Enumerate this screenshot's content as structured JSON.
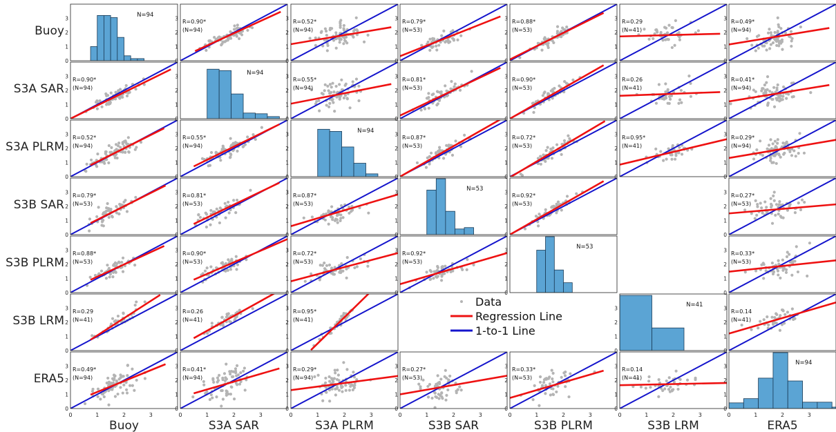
{
  "chart_data": {
    "type": "scatter",
    "variables": [
      "Buoy",
      "S3A SAR",
      "S3A PLRM",
      "S3B SAR",
      "S3B PLRM",
      "S3B LRM",
      "ERA5"
    ],
    "axis_limits": [
      0,
      4
    ],
    "ticks": [
      "0",
      "1",
      "2",
      "3"
    ],
    "legend": {
      "data": "Data",
      "regression": "Regression Line",
      "one_to_one": "1-to-1 Line",
      "placement": "center (row 6, columns 4-5)"
    },
    "colors": {
      "data": "#b4b4b4",
      "regression": "#ee1111",
      "one_to_one": "#1414cc",
      "histogram": "#5ba4d4"
    },
    "histograms": [
      {
        "variable": "Buoy",
        "n_label": "N=94",
        "bins": [
          [
            0.75,
            1.0,
            1
          ],
          [
            1.0,
            1.25,
            3.2
          ],
          [
            1.25,
            1.5,
            3.2
          ],
          [
            1.5,
            1.75,
            3.05
          ],
          [
            1.75,
            2.0,
            1.65
          ],
          [
            2.0,
            2.25,
            0.35
          ],
          [
            2.25,
            2.5,
            0.15
          ],
          [
            2.5,
            2.75,
            0.15
          ]
        ]
      },
      {
        "variable": "S3A SAR",
        "n_label": "N=94",
        "bins": [
          [
            1.0,
            1.45,
            3.5
          ],
          [
            1.45,
            1.9,
            3.4
          ],
          [
            1.9,
            2.35,
            1.75
          ],
          [
            2.35,
            2.8,
            0.4
          ],
          [
            2.8,
            3.25,
            0.35
          ],
          [
            3.25,
            3.7,
            0.15
          ]
        ]
      },
      {
        "variable": "S3A PLRM",
        "n_label": "N=94",
        "bins": [
          [
            1.0,
            1.45,
            3.35
          ],
          [
            1.45,
            1.9,
            3.2
          ],
          [
            1.9,
            2.35,
            2.1
          ],
          [
            2.35,
            2.8,
            0.95
          ],
          [
            2.8,
            3.25,
            0.2
          ]
        ]
      },
      {
        "variable": "S3B SAR",
        "n_label": "N=53",
        "bins": [
          [
            1.0,
            1.35,
            3.15
          ],
          [
            1.35,
            1.7,
            3.95
          ],
          [
            1.7,
            2.05,
            1.65
          ],
          [
            2.05,
            2.4,
            0.4
          ],
          [
            2.4,
            2.75,
            0.5
          ]
        ]
      },
      {
        "variable": "S3B PLRM",
        "n_label": "N=53",
        "bins": [
          [
            1.0,
            1.33,
            3.0
          ],
          [
            1.33,
            1.66,
            3.95
          ],
          [
            1.66,
            2.0,
            1.6
          ],
          [
            2.0,
            2.33,
            0.7
          ]
        ]
      },
      {
        "variable": "S3B LRM",
        "n_label": "N=41",
        "bins": [
          [
            0.0,
            1.2,
            3.9
          ],
          [
            1.2,
            2.4,
            1.6
          ]
        ]
      },
      {
        "variable": "ERA5",
        "n_label": "N=94",
        "bins": [
          [
            0.0,
            0.55,
            0.4
          ],
          [
            0.55,
            1.1,
            0.7
          ],
          [
            1.1,
            1.65,
            2.15
          ],
          [
            1.65,
            2.2,
            3.95
          ],
          [
            2.2,
            2.75,
            1.95
          ],
          [
            2.75,
            3.3,
            0.45
          ],
          [
            3.3,
            3.85,
            0.45
          ],
          [
            3.85,
            4.4,
            0.1
          ]
        ]
      }
    ],
    "panels": [
      {
        "row": 0,
        "col": 1,
        "r_label": "R=0.90*",
        "n_label": "(N=94)",
        "slope": 0.87,
        "intercept": 0.2,
        "x_range": [
          0.55,
          3.75
        ],
        "n": 94,
        "cx": 1.75,
        "cy": 1.75,
        "spread": 0.22
      },
      {
        "row": 0,
        "col": 2,
        "r_label": "R=0.52*",
        "n_label": "(N=94)",
        "slope": 0.32,
        "intercept": 1.17,
        "x_range": [
          0,
          3.75
        ],
        "n": 94,
        "cx": 1.7,
        "cy": 1.75,
        "spread": 0.45
      },
      {
        "row": 0,
        "col": 3,
        "r_label": "R=0.79*",
        "n_label": "(N=53)",
        "slope": 0.75,
        "intercept": 0.32,
        "x_range": [
          0,
          3.75
        ],
        "n": 53,
        "cx": 1.6,
        "cy": 1.55,
        "spread": 0.3
      },
      {
        "row": 0,
        "col": 4,
        "r_label": "R=0.88*",
        "n_label": "(N=53)",
        "slope": 0.94,
        "intercept": 0.09,
        "x_range": [
          0,
          3.5
        ],
        "n": 53,
        "cx": 1.6,
        "cy": 1.55,
        "spread": 0.22
      },
      {
        "row": 0,
        "col": 5,
        "r_label": "R=0.29",
        "n_label": "(N=41)",
        "slope": 0.05,
        "intercept": 1.72,
        "x_range": [
          0,
          3.75
        ],
        "n": 41,
        "cx": 1.7,
        "cy": 1.8,
        "spread": 0.4
      },
      {
        "row": 0,
        "col": 6,
        "r_label": "R=0.49*",
        "n_label": "(N=94)",
        "slope": 0.31,
        "intercept": 1.15,
        "x_range": [
          0,
          3.75
        ],
        "n": 94,
        "cx": 1.7,
        "cy": 1.75,
        "spread": 0.45
      },
      {
        "row": 1,
        "col": 0,
        "r_label": "R=0.90*",
        "n_label": "(N=94)",
        "slope": 0.93,
        "intercept": 0.0,
        "x_range": [
          0,
          3.75
        ],
        "n": 94,
        "cx": 1.7,
        "cy": 1.75,
        "spread": 0.22
      },
      {
        "row": 1,
        "col": 2,
        "r_label": "R=0.55*",
        "n_label": "(N=94)",
        "slope": 0.37,
        "intercept": 1.06,
        "x_range": [
          0,
          3.75
        ],
        "n": 94,
        "cx": 1.7,
        "cy": 1.75,
        "spread": 0.45
      },
      {
        "row": 1,
        "col": 3,
        "r_label": "R=0.81*",
        "n_label": "(N=53)",
        "slope": 0.9,
        "intercept": 0.22,
        "x_range": [
          0,
          3.75
        ],
        "n": 53,
        "cx": 1.6,
        "cy": 1.65,
        "spread": 0.3
      },
      {
        "row": 1,
        "col": 4,
        "r_label": "R=0.90*",
        "n_label": "(N=53)",
        "slope": 1.08,
        "intercept": 0.0,
        "x_range": [
          0,
          3.5
        ],
        "n": 53,
        "cx": 1.6,
        "cy": 1.6,
        "spread": 0.22
      },
      {
        "row": 1,
        "col": 5,
        "r_label": "R=0.26",
        "n_label": "(N=41)",
        "slope": 0.07,
        "intercept": 1.62,
        "x_range": [
          0,
          3.75
        ],
        "n": 41,
        "cx": 1.7,
        "cy": 1.8,
        "spread": 0.4
      },
      {
        "row": 1,
        "col": 6,
        "r_label": "R=0.41*",
        "n_label": "(N=94)",
        "slope": 0.31,
        "intercept": 1.22,
        "x_range": [
          0,
          3.75
        ],
        "n": 94,
        "cx": 1.7,
        "cy": 1.75,
        "spread": 0.45
      },
      {
        "row": 2,
        "col": 0,
        "r_label": "R=0.52*",
        "n_label": "(N=94)",
        "slope": 0.95,
        "intercept": 0.1,
        "x_range": [
          0.75,
          3.5
        ],
        "n": 94,
        "cx": 1.7,
        "cy": 1.75,
        "spread": 0.3
      },
      {
        "row": 2,
        "col": 1,
        "r_label": "R=0.55*",
        "n_label": "(N=94)",
        "slope": 0.93,
        "intercept": 0.26,
        "x_range": [
          0.5,
          3.7
        ],
        "n": 94,
        "cx": 1.7,
        "cy": 1.75,
        "spread": 0.3
      },
      {
        "row": 2,
        "col": 3,
        "r_label": "R=0.87*",
        "n_label": "(N=53)",
        "slope": 1.08,
        "intercept": 0.0,
        "x_range": [
          0,
          3.75
        ],
        "n": 53,
        "cx": 1.6,
        "cy": 1.7,
        "spread": 0.2
      },
      {
        "row": 2,
        "col": 4,
        "r_label": "R=0.72*",
        "n_label": "(N=53)",
        "slope": 1.12,
        "intercept": -0.05,
        "x_range": [
          0,
          3.55
        ],
        "n": 53,
        "cx": 1.6,
        "cy": 1.7,
        "spread": 0.22
      },
      {
        "row": 2,
        "col": 5,
        "r_label": "R=0.95*",
        "n_label": "(N=41)",
        "slope": 0.45,
        "intercept": 0.85,
        "x_range": [
          0,
          4.0
        ],
        "n": 41,
        "cx": 1.8,
        "cy": 1.7,
        "spread": 0.25
      },
      {
        "row": 2,
        "col": 6,
        "r_label": "R=0.29*",
        "n_label": "(N=94)",
        "slope": 0.32,
        "intercept": 1.32,
        "x_range": [
          0,
          4.0
        ],
        "n": 94,
        "cx": 1.7,
        "cy": 1.75,
        "spread": 0.45
      },
      {
        "row": 3,
        "col": 0,
        "r_label": "R=0.79*",
        "n_label": "(N=53)",
        "slope": 0.95,
        "intercept": 0.1,
        "x_range": [
          0.75,
          3.55
        ],
        "n": 53,
        "cx": 1.6,
        "cy": 1.6,
        "spread": 0.3
      },
      {
        "row": 3,
        "col": 1,
        "r_label": "R=0.81*",
        "n_label": "(N=53)",
        "slope": 0.91,
        "intercept": 0.3,
        "x_range": [
          0.5,
          3.7
        ],
        "n": 53,
        "cx": 1.6,
        "cy": 1.6,
        "spread": 0.3
      },
      {
        "row": 3,
        "col": 2,
        "r_label": "R=0.87*",
        "n_label": "(N=53)",
        "slope": 0.56,
        "intercept": 0.6,
        "x_range": [
          0,
          4.0
        ],
        "n": 53,
        "cx": 1.7,
        "cy": 1.6,
        "spread": 0.3
      },
      {
        "row": 3,
        "col": 4,
        "r_label": "R=0.92*",
        "n_label": "(N=53)",
        "slope": 1.08,
        "intercept": 0.0,
        "x_range": [
          0,
          3.5
        ],
        "n": 53,
        "cx": 1.6,
        "cy": 1.6,
        "spread": 0.2
      },
      {
        "row": 3,
        "col": 6,
        "r_label": "R=0.27*",
        "n_label": "(N=53)",
        "slope": 0.16,
        "intercept": 1.5,
        "x_range": [
          0,
          4.0
        ],
        "n": 53,
        "cx": 1.8,
        "cy": 1.75,
        "spread": 0.45
      },
      {
        "row": 4,
        "col": 0,
        "r_label": "R=0.88*",
        "n_label": "(N=53)",
        "slope": 0.87,
        "intercept": 0.25,
        "x_range": [
          0.75,
          3.5
        ],
        "n": 53,
        "cx": 1.6,
        "cy": 1.6,
        "spread": 0.25
      },
      {
        "row": 4,
        "col": 1,
        "r_label": "R=0.90*",
        "n_label": "(N=53)",
        "slope": 0.82,
        "intercept": 0.5,
        "x_range": [
          0.5,
          4.0
        ],
        "n": 53,
        "cx": 1.6,
        "cy": 1.6,
        "spread": 0.25
      },
      {
        "row": 4,
        "col": 2,
        "r_label": "R=0.72*",
        "n_label": "(N=53)",
        "slope": 0.5,
        "intercept": 0.8,
        "x_range": [
          0,
          4.0
        ],
        "n": 53,
        "cx": 1.7,
        "cy": 1.6,
        "spread": 0.3
      },
      {
        "row": 4,
        "col": 3,
        "r_label": "R=0.92*",
        "n_label": "(N=53)",
        "slope": 0.55,
        "intercept": 0.6,
        "x_range": [
          0,
          4.0
        ],
        "n": 53,
        "cx": 1.6,
        "cy": 1.55,
        "spread": 0.25
      },
      {
        "row": 4,
        "col": 6,
        "r_label": "R=0.33*",
        "n_label": "(N=53)",
        "slope": 0.2,
        "intercept": 1.48,
        "x_range": [
          0,
          4.0
        ],
        "n": 53,
        "cx": 1.8,
        "cy": 1.75,
        "spread": 0.45
      },
      {
        "row": 5,
        "col": 0,
        "r_label": "R=0.29",
        "n_label": "(N=41)",
        "slope": 1.22,
        "intercept": -0.15,
        "x_range": [
          0.75,
          3.35
        ],
        "n": 41,
        "cx": 1.7,
        "cy": 1.7,
        "spread": 0.2
      },
      {
        "row": 5,
        "col": 1,
        "r_label": "R=0.26",
        "n_label": "(N=41)",
        "slope": 1.05,
        "intercept": 0.35,
        "x_range": [
          0.5,
          4.0
        ],
        "n": 41,
        "cx": 1.7,
        "cy": 1.75,
        "spread": 0.2
      },
      {
        "row": 5,
        "col": 2,
        "r_label": "R=0.95*",
        "n_label": "(N=41)",
        "slope": 1.85,
        "intercept": -1.35,
        "x_range": [
          0.75,
          2.95
        ],
        "n": 41,
        "cx": 1.75,
        "cy": 1.7,
        "spread": 0.15
      },
      {
        "row": 5,
        "col": 6,
        "r_label": "R=0.14",
        "n_label": "(N=41)",
        "slope": 0.55,
        "intercept": 1.2,
        "x_range": [
          0,
          4.0
        ],
        "n": 41,
        "cx": 1.8,
        "cy": 1.75,
        "spread": 0.35
      },
      {
        "row": 6,
        "col": 0,
        "r_label": "R=0.49*",
        "n_label": "(N=94)",
        "slope": 0.77,
        "intercept": 0.4,
        "x_range": [
          0.75,
          3.55
        ],
        "n": 94,
        "cx": 1.7,
        "cy": 1.7,
        "spread": 0.5
      },
      {
        "row": 6,
        "col": 1,
        "r_label": "R=0.41*",
        "n_label": "(N=94)",
        "slope": 0.55,
        "intercept": 0.8,
        "x_range": [
          0.5,
          3.7
        ],
        "n": 94,
        "cx": 1.7,
        "cy": 1.7,
        "spread": 0.5
      },
      {
        "row": 6,
        "col": 2,
        "r_label": "R=0.29*",
        "n_label": "(N=94)",
        "slope": 0.25,
        "intercept": 1.3,
        "x_range": [
          0,
          4.0
        ],
        "n": 94,
        "cx": 1.7,
        "cy": 1.7,
        "spread": 0.5
      },
      {
        "row": 6,
        "col": 3,
        "r_label": "R=0.27*",
        "n_label": "(N=53)",
        "slope": 0.33,
        "intercept": 1.0,
        "x_range": [
          0,
          4.0
        ],
        "n": 53,
        "cx": 1.6,
        "cy": 1.7,
        "spread": 0.5
      },
      {
        "row": 6,
        "col": 4,
        "r_label": "R=0.33*",
        "n_label": "(N=53)",
        "slope": 0.55,
        "intercept": 0.75,
        "x_range": [
          0,
          3.5
        ],
        "n": 53,
        "cx": 1.6,
        "cy": 1.7,
        "spread": 0.45
      },
      {
        "row": 6,
        "col": 5,
        "r_label": "R=0.14",
        "n_label": "(N=41)",
        "slope": 0.04,
        "intercept": 1.65,
        "x_range": [
          0,
          4.0
        ],
        "n": 41,
        "cx": 1.8,
        "cy": 1.7,
        "spread": 0.35
      }
    ]
  }
}
